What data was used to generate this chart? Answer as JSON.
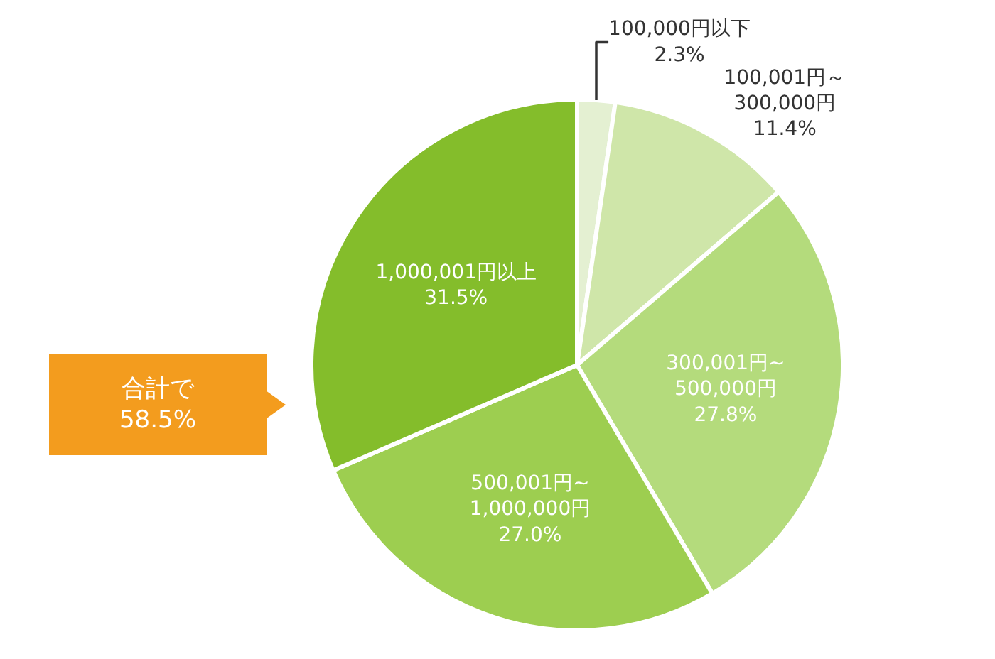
{
  "chart_data": {
    "type": "pie",
    "categories": [
      "100,000円以下",
      "100,001円～\n300,000円",
      "300,001円~\n500,000円",
      "500,001円~\n1,000,000円",
      "1,000,001円以上"
    ],
    "values": [
      2.3,
      11.4,
      27.8,
      27.0,
      31.5
    ],
    "value_labels": [
      "2.3%",
      "11.4%",
      "27.8%",
      "27.0%",
      "31.5%"
    ],
    "colors": [
      "#e4f0d2",
      "#cfe6a9",
      "#b4db7c",
      "#9dce50",
      "#84bd2b"
    ],
    "annotations": [
      "合計で\n58.5%"
    ],
    "legend": false
  }
}
